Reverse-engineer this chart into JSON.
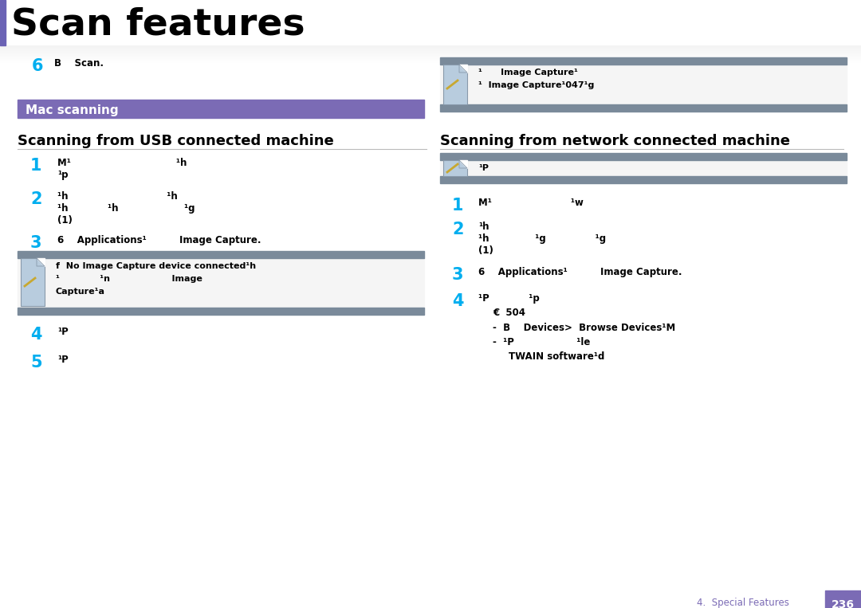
{
  "title": "Scan features",
  "title_color": "#000000",
  "title_fontsize": 34,
  "page_bg": "#FFFFFF",
  "title_bar_color": "#6B63B5",
  "mac_scanning_bg": "#7B6BB5",
  "mac_scanning_text": "Mac scanning",
  "mac_scanning_text_color": "#FFFFFF",
  "mac_scanning_fontsize": 11,
  "section_left_title": "Scanning from USB connected machine",
  "section_right_title": "Scanning from network connected machine",
  "section_title_fontsize": 13,
  "step_number_color": "#00AEEF",
  "step_number_fontsize": 15,
  "note_bar_color": "#7A8A9A",
  "body_fontsize": 8.5,
  "bold_body": true,
  "footer_text": "4.  Special Features",
  "footer_page": "236",
  "footer_color": "#7B6BB5",
  "footer_page_bg": "#7B6BB5",
  "footer_page_text_color": "#FFFFFF",
  "note_icon_face": "#B8CCDE",
  "note_icon_edge": "#8899AA",
  "separator_color": "#BBBBBB",
  "shadow_color": "#CCCCCC"
}
